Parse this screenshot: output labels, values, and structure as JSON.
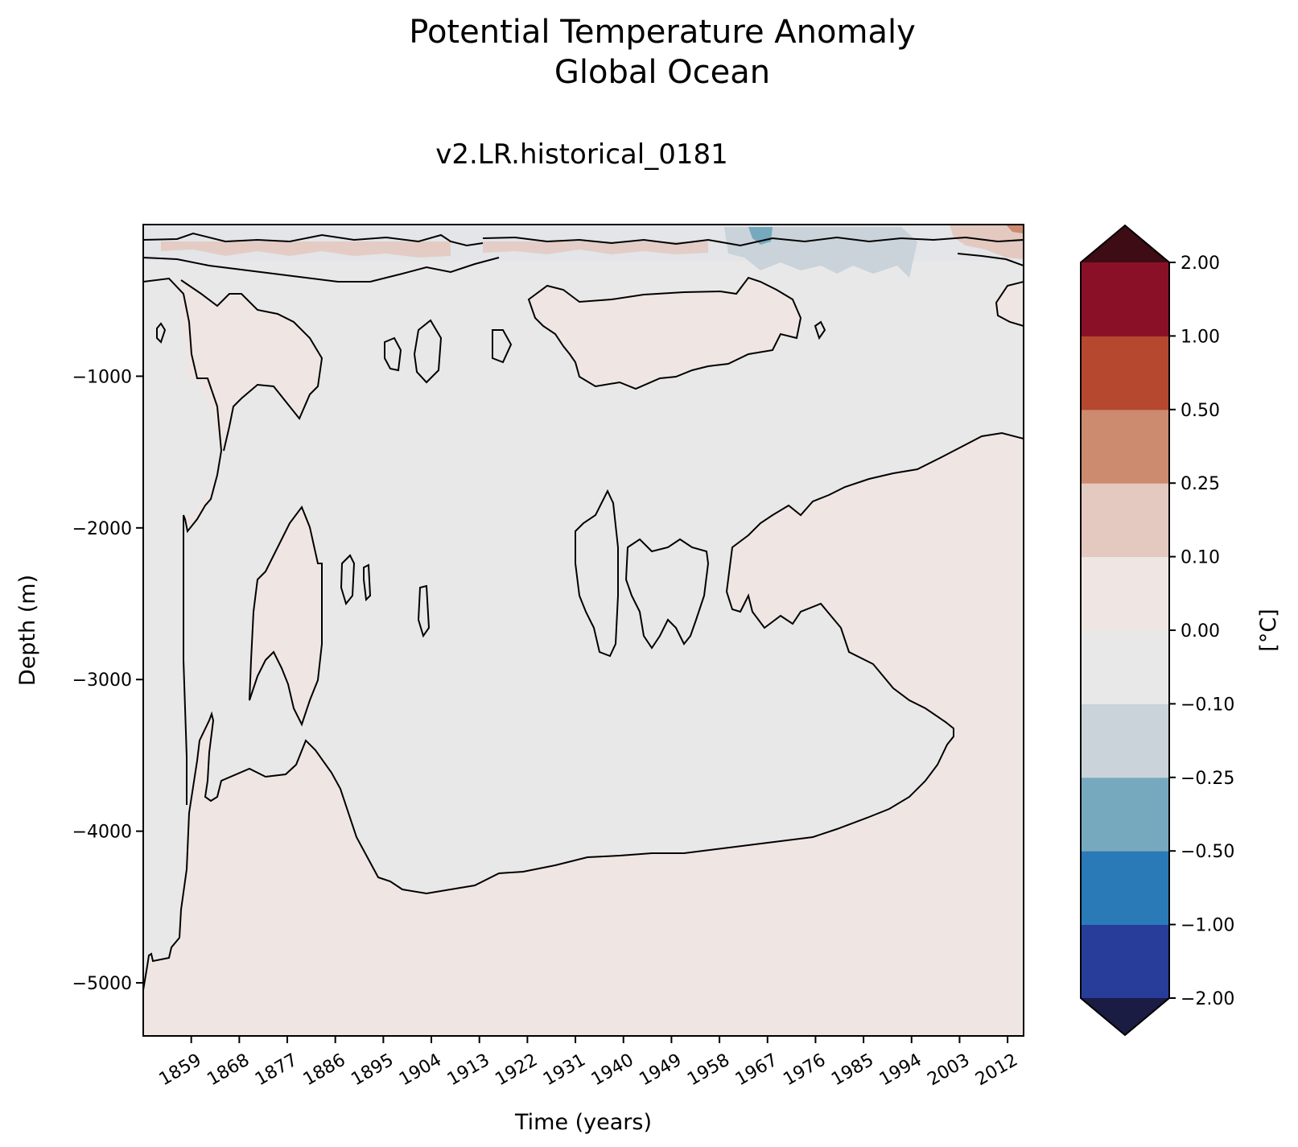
{
  "figure": {
    "title_line1": "Potential Temperature Anomaly",
    "title_line2": "Global Ocean",
    "subtitle": "v2.LR.historical_0181"
  },
  "chart_data": {
    "type": "heatmap",
    "title": "Potential Temperature Anomaly Global Ocean",
    "subtitle": "v2.LR.historical_0181",
    "xlabel": "Time (years)",
    "ylabel": "Depth (m)",
    "xlim": [
      1850,
      2015
    ],
    "ylim": [
      -5350,
      0
    ],
    "x_ticks": [
      1859,
      1868,
      1877,
      1886,
      1895,
      1904,
      1913,
      1922,
      1931,
      1940,
      1949,
      1958,
      1967,
      1976,
      1985,
      1994,
      2003,
      2012
    ],
    "y_ticks": [
      -1000,
      -2000,
      -3000,
      -4000,
      -5000
    ],
    "y_tick_labels": [
      "−1000",
      "−2000",
      "−3000",
      "−4000",
      "−5000"
    ],
    "grid": false,
    "colorbar": {
      "label": "[°C]",
      "levels": [
        -2.0,
        -1.0,
        -0.5,
        -0.25,
        -0.1,
        0.0,
        0.1,
        0.25,
        0.5,
        1.0,
        2.0
      ],
      "tick_labels": [
        "−2.00",
        "−1.00",
        "−0.50",
        "−0.25",
        "−0.10",
        "0.00",
        "0.10",
        "0.25",
        "0.50",
        "1.00",
        "2.00"
      ],
      "colors": [
        "#283d99",
        "#2a7ab8",
        "#77a9be",
        "#c9d3d9",
        "#e9e8e9",
        "#efe6e4",
        "#e3c9c0",
        "#cc8a6f",
        "#b5482e",
        "#8a1028"
      ],
      "extend_low_color": "#1b1c44",
      "extend_high_color": "#3d0c14"
    },
    "regions": [
      {
        "anomaly_range": [
          0.0,
          0.1
        ],
        "time": [
          1850,
          2015
        ],
        "depth": [
          -5350,
          -4200
        ],
        "description": "warm abyssal layer"
      },
      {
        "anomaly_range": [
          -0.1,
          0.0
        ],
        "time": [
          1850,
          2015
        ],
        "depth": [
          -4200,
          -500
        ],
        "description": "slightly cool intermediate water"
      },
      {
        "anomaly_range": [
          0.0,
          0.1
        ],
        "time": [
          1930,
          1985
        ],
        "depth": [
          -1000,
          -400
        ],
        "description": "warm patch"
      },
      {
        "anomaly_range": [
          0.0,
          0.1
        ],
        "time": [
          1960,
          2015
        ],
        "depth": [
          -3400,
          -1400
        ],
        "description": "deep warming wedge"
      },
      {
        "anomaly_range": [
          -0.25,
          0.5
        ],
        "time": [
          1850,
          2015
        ],
        "depth": [
          -300,
          0
        ],
        "description": "variable surface layer"
      }
    ]
  }
}
